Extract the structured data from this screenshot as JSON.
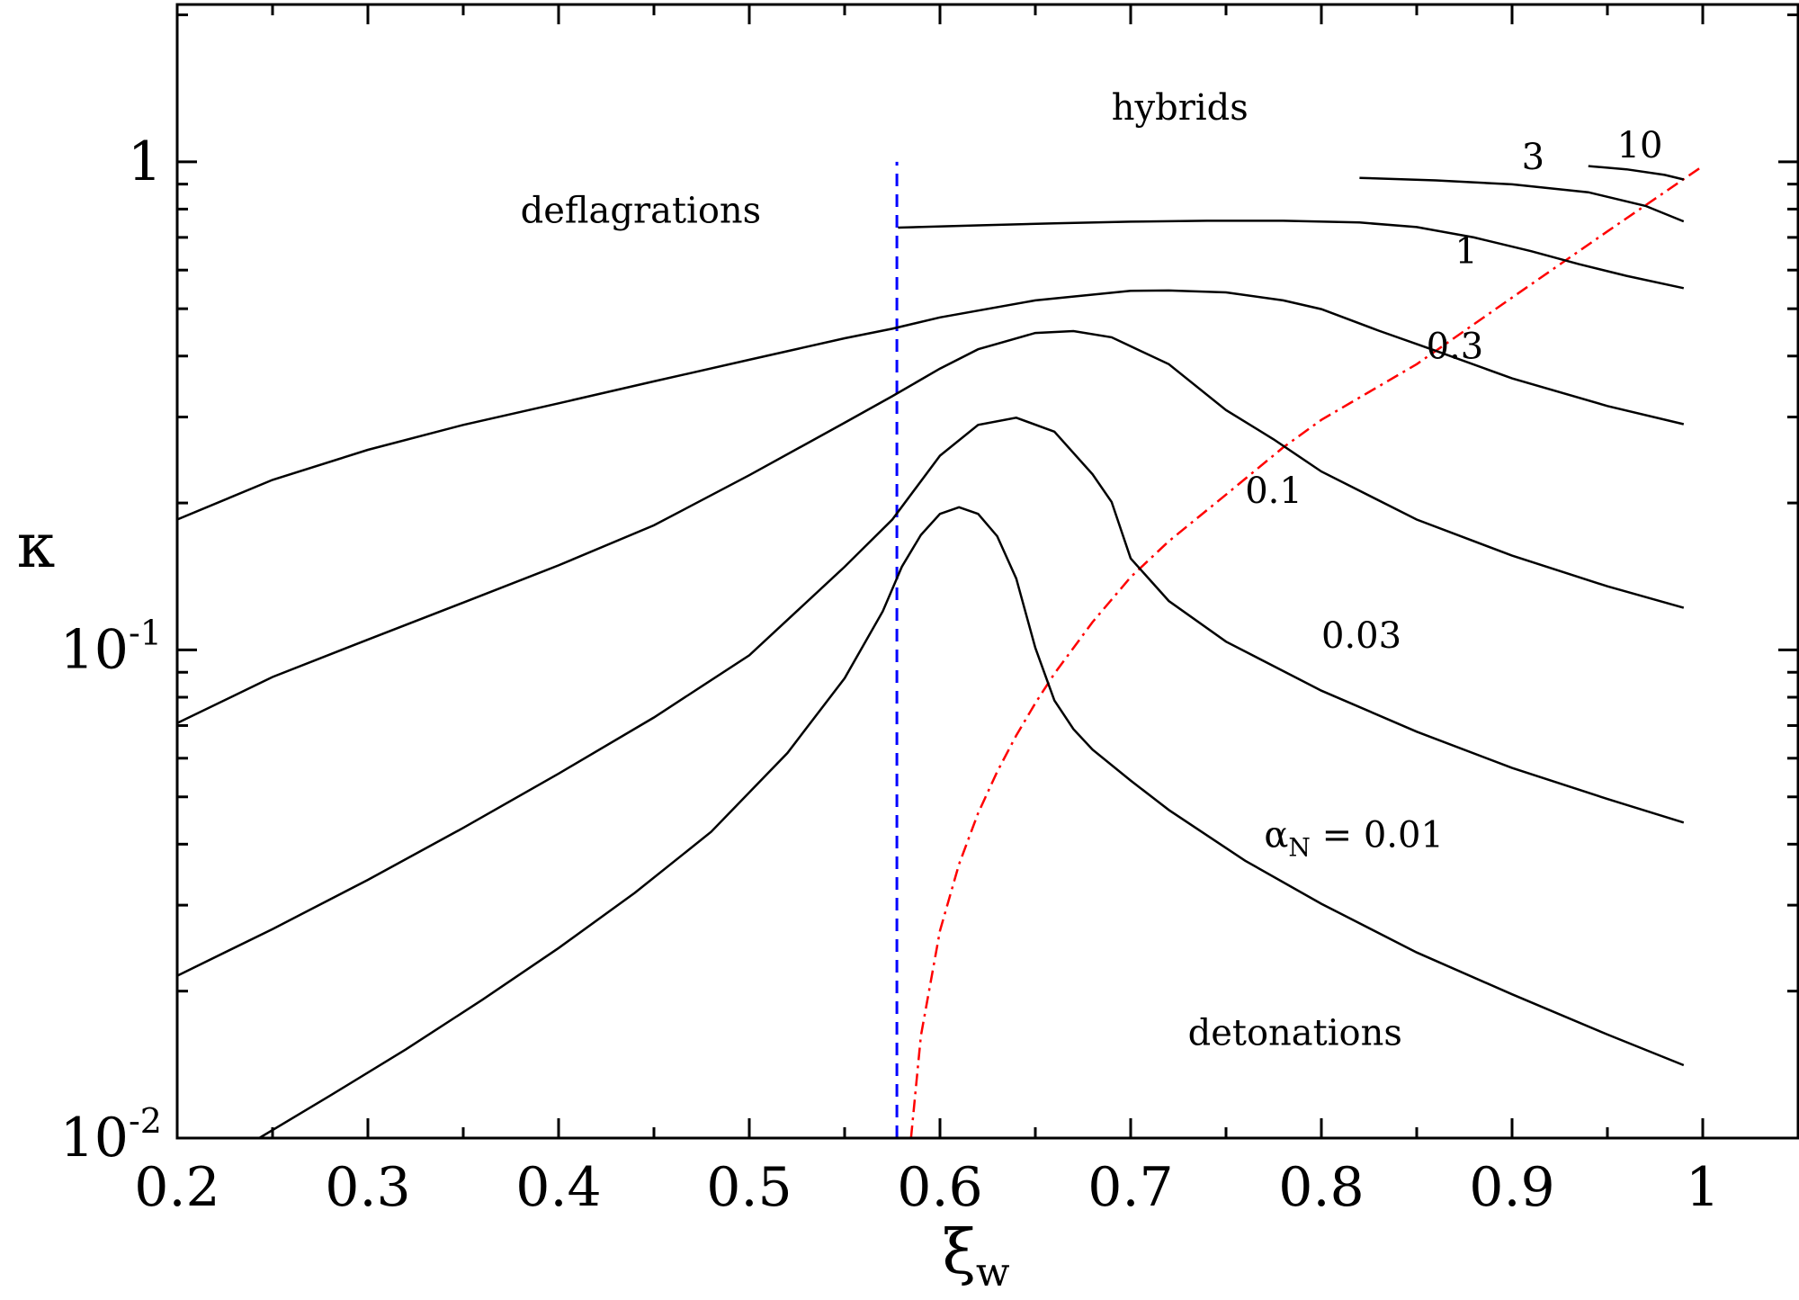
{
  "chart_data": {
    "type": "line",
    "xlabel": "ξ",
    "xlabel_sub": "w",
    "ylabel": "κ",
    "xlim": [
      0.2,
      1.05
    ],
    "ylim": [
      0.01,
      2.1
    ],
    "yscale": "log",
    "grid": false,
    "x_ticks": [
      "0.2",
      "0.3",
      "0.4",
      "0.5",
      "0.6",
      "0.7",
      "0.8",
      "0.9",
      "1"
    ],
    "y_ticks": [
      {
        "value": 1,
        "base": "1",
        "exp": ""
      },
      {
        "value": 0.1,
        "base": "10",
        "exp": "-1"
      },
      {
        "value": 0.01,
        "base": "10",
        "exp": "-2"
      }
    ],
    "regions": [
      {
        "text": "deflagrations",
        "x": 0.38,
        "y": 0.75
      },
      {
        "text": "hybrids",
        "x": 0.69,
        "y": 1.22
      },
      {
        "text": "detonations",
        "x": 0.73,
        "y": 0.0155
      }
    ],
    "series": [
      {
        "label": "α",
        "label_sub": "N",
        "label_rest": " = 0.01",
        "label_x": 0.77,
        "label_y": 0.0395,
        "color": "#000000",
        "x": [
          0.243,
          0.28,
          0.32,
          0.36,
          0.4,
          0.44,
          0.48,
          0.52,
          0.55,
          0.57,
          0.58,
          0.59,
          0.6,
          0.61,
          0.62,
          0.63,
          0.64,
          0.65,
          0.66,
          0.67,
          0.68,
          0.7,
          0.72,
          0.76,
          0.8,
          0.85,
          0.9,
          0.95,
          0.99
        ],
        "y": [
          0.01,
          0.0122,
          0.0152,
          0.0192,
          0.0245,
          0.0318,
          0.0424,
          0.0615,
          0.0875,
          0.12,
          0.148,
          0.172,
          0.19,
          0.196,
          0.19,
          0.171,
          0.14,
          0.101,
          0.0788,
          0.0688,
          0.0625,
          0.054,
          0.047,
          0.037,
          0.0302,
          0.024,
          0.0197,
          0.0163,
          0.0141
        ]
      },
      {
        "label": "0.03",
        "label_x": 0.8,
        "label_y": 0.101,
        "color": "#000000",
        "x": [
          0.2,
          0.25,
          0.3,
          0.35,
          0.4,
          0.45,
          0.5,
          0.55,
          0.575,
          0.6,
          0.62,
          0.64,
          0.66,
          0.68,
          0.69,
          0.7,
          0.72,
          0.75,
          0.8,
          0.85,
          0.9,
          0.95,
          0.99
        ],
        "y": [
          0.0215,
          0.0268,
          0.0338,
          0.0432,
          0.0558,
          0.0727,
          0.0975,
          0.148,
          0.185,
          0.25,
          0.289,
          0.299,
          0.28,
          0.229,
          0.201,
          0.154,
          0.126,
          0.104,
          0.0825,
          0.068,
          0.0573,
          0.0495,
          0.0443
        ]
      },
      {
        "label": "0.1",
        "label_x": 0.76,
        "label_y": 0.2,
        "color": "#000000",
        "x": [
          0.2,
          0.25,
          0.3,
          0.35,
          0.4,
          0.45,
          0.5,
          0.55,
          0.575,
          0.6,
          0.62,
          0.65,
          0.67,
          0.69,
          0.72,
          0.75,
          0.775,
          0.8,
          0.85,
          0.9,
          0.95,
          0.99
        ],
        "y": [
          0.0708,
          0.088,
          0.105,
          0.125,
          0.149,
          0.18,
          0.228,
          0.292,
          0.331,
          0.377,
          0.413,
          0.446,
          0.45,
          0.437,
          0.385,
          0.31,
          0.27,
          0.232,
          0.185,
          0.156,
          0.135,
          0.122
        ]
      },
      {
        "label": "0.3",
        "label_x": 0.855,
        "label_y": 0.395,
        "color": "#000000",
        "x": [
          0.2,
          0.25,
          0.3,
          0.35,
          0.4,
          0.45,
          0.5,
          0.55,
          0.575,
          0.6,
          0.65,
          0.7,
          0.72,
          0.75,
          0.78,
          0.8,
          0.83,
          0.86,
          0.9,
          0.95,
          0.99
        ],
        "y": [
          0.185,
          0.223,
          0.257,
          0.289,
          0.32,
          0.355,
          0.393,
          0.435,
          0.455,
          0.48,
          0.52,
          0.544,
          0.545,
          0.54,
          0.52,
          0.499,
          0.451,
          0.41,
          0.36,
          0.316,
          0.29
        ]
      },
      {
        "label": "1",
        "label_x": 0.87,
        "label_y": 0.62,
        "color": "#000000",
        "x": [
          0.578,
          0.62,
          0.66,
          0.7,
          0.74,
          0.78,
          0.82,
          0.85,
          0.88,
          0.91,
          0.935,
          0.96,
          0.99
        ],
        "y": [
          0.733,
          0.741,
          0.748,
          0.754,
          0.757,
          0.757,
          0.751,
          0.735,
          0.7,
          0.656,
          0.617,
          0.584,
          0.551
        ]
      },
      {
        "label": "3",
        "label_x": 0.905,
        "label_y": 0.965,
        "color": "#000000",
        "x": [
          0.82,
          0.86,
          0.9,
          0.94,
          0.97,
          0.99
        ],
        "y": [
          0.927,
          0.916,
          0.899,
          0.866,
          0.812,
          0.755
        ]
      },
      {
        "label": "10",
        "label_x": 0.955,
        "label_y": 1.02,
        "color": "#000000",
        "x": [
          0.94,
          0.96,
          0.98,
          0.99
        ],
        "y": [
          0.98,
          0.965,
          0.94,
          0.92
        ]
      }
    ],
    "reference_lines": [
      {
        "type": "vertical",
        "x": 0.5774,
        "y_range": [
          0.01,
          1.0
        ],
        "color": "#0000ff",
        "style": "dashed"
      },
      {
        "type": "curve",
        "color": "#ff0000",
        "style": "dash-dot",
        "x": [
          0.5848,
          0.59,
          0.6,
          0.61,
          0.62,
          0.63,
          0.64,
          0.65,
          0.66,
          0.68,
          0.7,
          0.72,
          0.75,
          0.78,
          0.8,
          0.85,
          0.9,
          0.95,
          1.0
        ],
        "y": [
          0.01,
          0.0162,
          0.0266,
          0.0364,
          0.0463,
          0.0563,
          0.0668,
          0.0778,
          0.0894,
          0.114,
          0.141,
          0.167,
          0.208,
          0.26,
          0.296,
          0.385,
          0.527,
          0.72,
          0.98
        ]
      }
    ]
  }
}
